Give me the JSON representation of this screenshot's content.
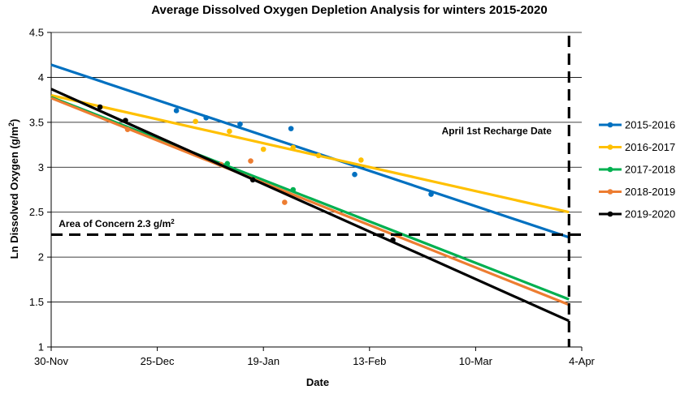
{
  "chart_data": {
    "type": "scatter",
    "title": "Average Dissolved Oxygen Depletion Analysis for winters 2015-2020",
    "xlabel": "Date",
    "ylabel_main": "Ln Dissolved Oxygen (g/m",
    "ylabel_sup": "2",
    "ylabel_end": ")",
    "xlim": [
      0,
      123
    ],
    "ylim": [
      1,
      4.5
    ],
    "x_unit": "days since 30-Nov",
    "x_ticks": [
      {
        "label": "30-Nov",
        "value": 0
      },
      {
        "label": "25-Dec",
        "value": 25
      },
      {
        "label": "19-Jan",
        "value": 50
      },
      {
        "label": "13-Feb",
        "value": 75
      },
      {
        "label": "10-Mar",
        "value": 100
      },
      {
        "label": "4-Apr",
        "value": 125
      }
    ],
    "y_ticks": [
      1,
      1.5,
      2,
      2.5,
      3,
      3.5,
      4,
      4.5
    ],
    "gridlines": "horizontal",
    "legend_position": "right",
    "series": [
      {
        "name": "2015-2016",
        "color": "#0070C0",
        "points": [
          [
            29.5,
            3.63
          ],
          [
            36.5,
            3.55
          ],
          [
            44.5,
            3.48
          ],
          [
            56.5,
            3.43
          ],
          [
            71.5,
            2.92
          ],
          [
            89.5,
            2.7
          ]
        ],
        "trend": [
          [
            0,
            4.14
          ],
          [
            122,
            2.22
          ]
        ]
      },
      {
        "name": "2016-2017",
        "color": "#FFC000",
        "points": [
          [
            34,
            3.51
          ],
          [
            42,
            3.4
          ],
          [
            50,
            3.2
          ],
          [
            57,
            3.22
          ],
          [
            63,
            3.13
          ],
          [
            73,
            3.08
          ]
        ],
        "trend": [
          [
            0,
            3.8
          ],
          [
            122,
            2.5
          ]
        ]
      },
      {
        "name": "2017-2018",
        "color": "#00B050",
        "points": [
          [
            41.5,
            3.04
          ],
          [
            57,
            2.75
          ]
        ],
        "trend": [
          [
            0,
            3.78
          ],
          [
            122,
            1.53
          ]
        ]
      },
      {
        "name": "2018-2019",
        "color": "#ED7D31",
        "points": [
          [
            18,
            3.42
          ],
          [
            40,
            3.03
          ],
          [
            47,
            3.07
          ],
          [
            55,
            2.61
          ]
        ],
        "trend": [
          [
            0,
            3.77
          ],
          [
            122,
            1.47
          ]
        ]
      },
      {
        "name": "2019-2020",
        "color": "#000000",
        "points": [
          [
            11.5,
            3.67
          ],
          [
            17.5,
            3.52
          ],
          [
            47.5,
            2.86
          ],
          [
            80.5,
            2.19
          ]
        ],
        "trend": [
          [
            0,
            3.87
          ],
          [
            122,
            1.29
          ]
        ]
      }
    ],
    "reference_lines": [
      {
        "orientation": "horizontal",
        "value": 2.25,
        "style": "dashed",
        "color": "#000000"
      },
      {
        "orientation": "vertical",
        "value": 122,
        "style": "dashed",
        "color": "#000000"
      }
    ],
    "annotations": [
      {
        "text": "April 1st Recharge Date",
        "x": 92,
        "y": 3.37
      },
      {
        "text_main": "Area of Concern 2.3 g/m",
        "text_sup": "2",
        "x": 1,
        "y": 2.38
      }
    ]
  }
}
